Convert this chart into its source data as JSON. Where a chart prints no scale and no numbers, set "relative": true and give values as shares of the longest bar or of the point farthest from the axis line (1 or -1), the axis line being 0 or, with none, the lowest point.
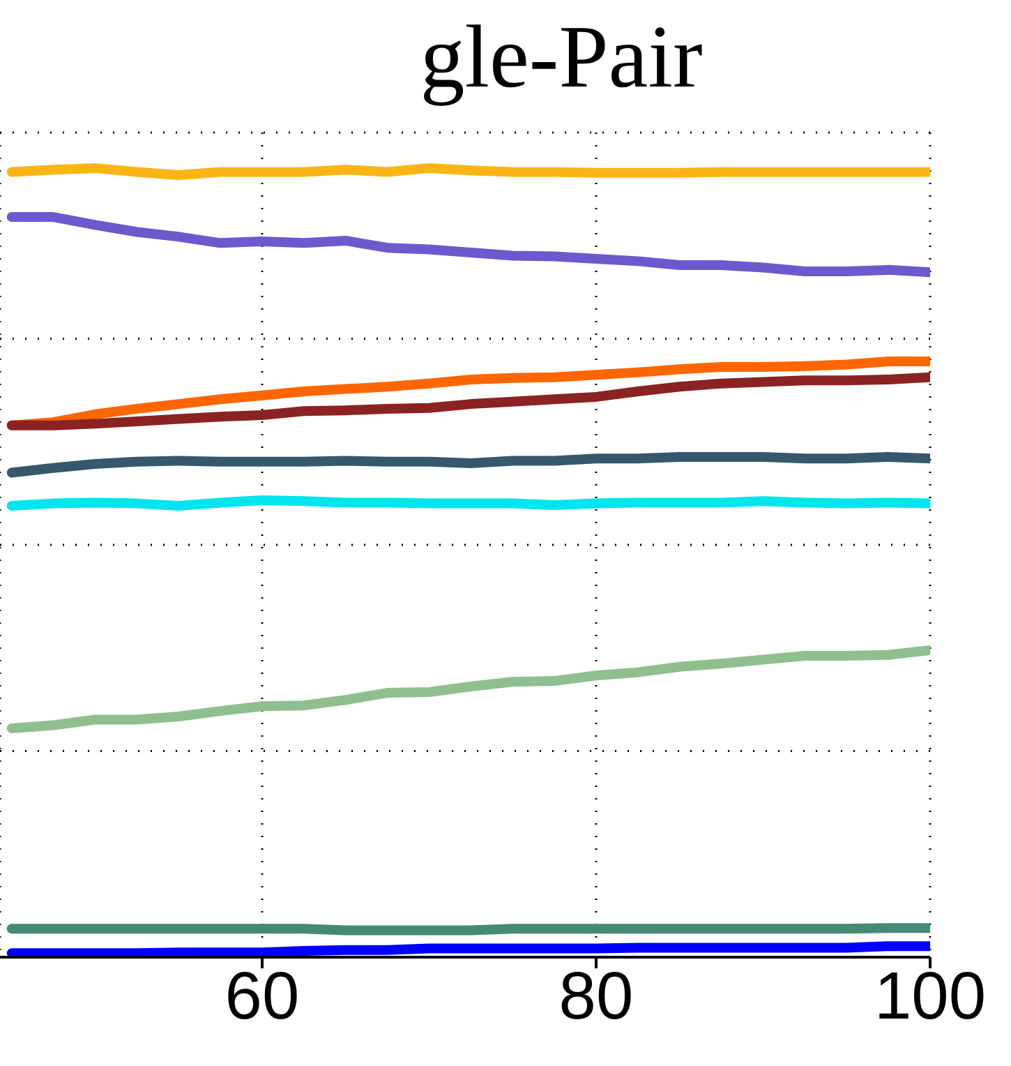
{
  "chart_data": {
    "type": "line",
    "title": "gle-Pair",
    "relative": true,
    "grid": true,
    "x": [
      45,
      47.5,
      50,
      52.5,
      55,
      57.5,
      60,
      62.5,
      65,
      67.5,
      70,
      72.5,
      75,
      77.5,
      80,
      82.5,
      85,
      87.5,
      90,
      92.5,
      95,
      97.5,
      100
    ],
    "xlim": [
      44.3,
      100
    ],
    "xticks": [
      60,
      80,
      100
    ],
    "series": [
      {
        "color": "#fdb515",
        "values": [
          0.995,
          0.998,
          1.0,
          0.995,
          0.991,
          0.995,
          0.995,
          0.995,
          0.998,
          0.995,
          1.0,
          0.997,
          0.995,
          0.995,
          0.994,
          0.994,
          0.994,
          0.995,
          0.995,
          0.995,
          0.995,
          0.995,
          0.995
        ]
      },
      {
        "color": "#6a5acd",
        "values": [
          0.938,
          0.938,
          0.928,
          0.919,
          0.913,
          0.905,
          0.907,
          0.905,
          0.908,
          0.899,
          0.897,
          0.893,
          0.889,
          0.888,
          0.885,
          0.882,
          0.877,
          0.877,
          0.874,
          0.869,
          0.869,
          0.871,
          0.868
        ]
      },
      {
        "color": "#ff6600",
        "values": [
          0.674,
          0.678,
          0.688,
          0.695,
          0.701,
          0.707,
          0.712,
          0.717,
          0.72,
          0.723,
          0.727,
          0.732,
          0.734,
          0.735,
          0.738,
          0.741,
          0.745,
          0.748,
          0.748,
          0.749,
          0.751,
          0.755,
          0.755
        ]
      },
      {
        "color": "#8b2323",
        "values": [
          0.674,
          0.674,
          0.676,
          0.679,
          0.682,
          0.685,
          0.687,
          0.692,
          0.693,
          0.695,
          0.696,
          0.701,
          0.704,
          0.707,
          0.71,
          0.717,
          0.723,
          0.727,
          0.729,
          0.731,
          0.731,
          0.732,
          0.735
        ]
      },
      {
        "color": "#36586c",
        "values": [
          0.614,
          0.62,
          0.625,
          0.628,
          0.629,
          0.628,
          0.628,
          0.628,
          0.629,
          0.628,
          0.628,
          0.626,
          0.629,
          0.629,
          0.632,
          0.632,
          0.634,
          0.634,
          0.634,
          0.632,
          0.632,
          0.634,
          0.632
        ]
      },
      {
        "color": "#00e5ee",
        "values": [
          0.572,
          0.575,
          0.576,
          0.575,
          0.572,
          0.576,
          0.579,
          0.578,
          0.576,
          0.576,
          0.575,
          0.575,
          0.575,
          0.573,
          0.575,
          0.576,
          0.576,
          0.576,
          0.578,
          0.576,
          0.575,
          0.576,
          0.575
        ]
      },
      {
        "color": "#8fbf8f",
        "values": [
          0.29,
          0.294,
          0.301,
          0.301,
          0.305,
          0.312,
          0.318,
          0.319,
          0.326,
          0.335,
          0.336,
          0.343,
          0.349,
          0.35,
          0.357,
          0.361,
          0.368,
          0.372,
          0.377,
          0.382,
          0.382,
          0.383,
          0.389
        ]
      },
      {
        "color": "#458b74",
        "values": [
          0.036,
          0.036,
          0.036,
          0.036,
          0.036,
          0.036,
          0.036,
          0.036,
          0.034,
          0.034,
          0.034,
          0.034,
          0.036,
          0.036,
          0.036,
          0.036,
          0.036,
          0.036,
          0.036,
          0.036,
          0.036,
          0.037,
          0.037
        ]
      },
      {
        "color": "#0000ff",
        "values": [
          0.005,
          0.005,
          0.005,
          0.005,
          0.006,
          0.006,
          0.006,
          0.008,
          0.009,
          0.009,
          0.011,
          0.011,
          0.011,
          0.011,
          0.011,
          0.012,
          0.012,
          0.012,
          0.012,
          0.012,
          0.012,
          0.014,
          0.014
        ]
      }
    ]
  }
}
